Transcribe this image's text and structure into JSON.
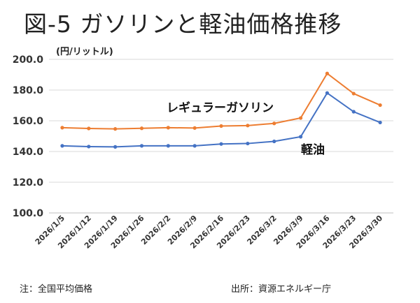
{
  "title": "図-5 ガソリンと軽油価格推移",
  "unit_label": "(円/リットル)",
  "footer": {
    "note": "注：全国平均価格",
    "source": "出所：資源エネルギー庁"
  },
  "chart_data": {
    "type": "line",
    "x": [
      "2026/1/5",
      "2026/1/12",
      "2026/1/19",
      "2026/1/26",
      "2026/2/2",
      "2026/2/9",
      "2026/2/16",
      "2026/2/23",
      "2026/3/2",
      "2026/3/9",
      "2026/3/16",
      "2026/3/23",
      "2026/3/30"
    ],
    "ylim": [
      100,
      200
    ],
    "yticks": [
      "200.0",
      "180.0",
      "160.0",
      "140.0",
      "120.0",
      "100.0"
    ],
    "grid": true,
    "series": [
      {
        "name": "レギュラーガソリン",
        "color": "#ED7D31",
        "values": [
          155.5,
          155.0,
          154.7,
          155.1,
          155.5,
          155.3,
          156.6,
          156.9,
          158.3,
          161.8,
          190.8,
          177.7,
          170.2
        ]
      },
      {
        "name": "軽油",
        "color": "#4472C4",
        "values": [
          143.7,
          143.2,
          143.0,
          143.7,
          143.7,
          143.7,
          144.9,
          145.2,
          146.6,
          149.6,
          178.1,
          165.9,
          158.9
        ]
      }
    ]
  }
}
